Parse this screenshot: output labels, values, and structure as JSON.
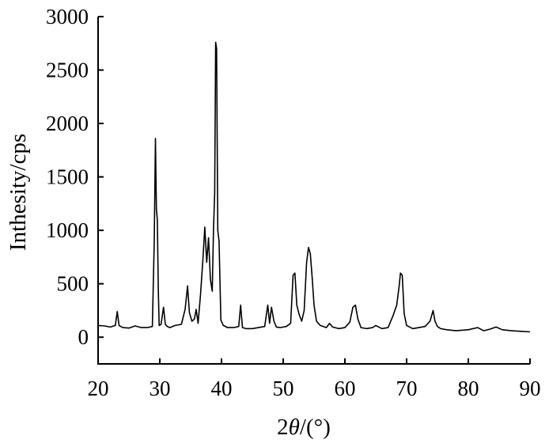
{
  "chart_data": {
    "type": "line",
    "title": "",
    "xlabel": {
      "prefix": "2",
      "symbol": "θ",
      "suffix": "/(°)"
    },
    "ylabel": "Inthesity/cps",
    "xlim": [
      20,
      90
    ],
    "ylim": [
      -250,
      3000
    ],
    "xticks": [
      "20",
      "30",
      "40",
      "50",
      "60",
      "70",
      "80",
      "90"
    ],
    "yticks": [
      "0",
      "500",
      "1000",
      "1500",
      "2000",
      "2500",
      "3000"
    ],
    "grid": false,
    "legend": "none",
    "line_color": "#000000",
    "series": [
      {
        "x": [
          20,
          21,
          22,
          22.8,
          23.1,
          23.4,
          24,
          25,
          26,
          27,
          28,
          28.8,
          29.1,
          29.3,
          29.45,
          29.6,
          29.75,
          29.9,
          30.2,
          30.6,
          30.9,
          31.2,
          31.6,
          32.5,
          33.5,
          34.1,
          34.5,
          34.8,
          35.2,
          35.6,
          35.9,
          36.2,
          36.6,
          37.0,
          37.3,
          37.6,
          37.9,
          38.2,
          38.5,
          38.7,
          38.9,
          39.05,
          39.2,
          39.4,
          39.6,
          39.9,
          40.3,
          41,
          42,
          42.8,
          43.1,
          43.4,
          44,
          45,
          46,
          47,
          47.5,
          47.8,
          48.1,
          48.5,
          48.9,
          49.5,
          50.5,
          51.2,
          51.6,
          51.9,
          52.2,
          52.6,
          53.0,
          53.4,
          53.8,
          54.1,
          54.4,
          54.7,
          55.0,
          55.4,
          56,
          57,
          57.5,
          58,
          59,
          60,
          60.8,
          61.3,
          61.7,
          62.1,
          62.6,
          63.5,
          64.5,
          65,
          66,
          67,
          67.8,
          68.4,
          68.8,
          69.0,
          69.3,
          69.6,
          70.0,
          71,
          72,
          73,
          73.8,
          74.3,
          74.6,
          75.0,
          75.5,
          76.5,
          78,
          80,
          81.5,
          82.5,
          83.5,
          84.5,
          85.5,
          87,
          88.5,
          90
        ],
        "y": [
          110,
          105,
          95,
          110,
          240,
          110,
          90,
          85,
          105,
          90,
          90,
          100,
          900,
          1860,
          1200,
          1100,
          450,
          110,
          120,
          280,
          120,
          100,
          90,
          110,
          120,
          260,
          480,
          230,
          150,
          170,
          260,
          130,
          400,
          740,
          1030,
          700,
          930,
          540,
          430,
          1010,
          1350,
          2760,
          2700,
          1000,
          900,
          160,
          110,
          90,
          90,
          100,
          300,
          90,
          80,
          80,
          90,
          100,
          300,
          130,
          280,
          150,
          95,
          90,
          100,
          130,
          580,
          600,
          300,
          210,
          150,
          250,
          700,
          840,
          780,
          550,
          300,
          150,
          110,
          90,
          130,
          95,
          80,
          90,
          140,
          280,
          300,
          170,
          90,
          80,
          90,
          110,
          80,
          90,
          200,
          300,
          480,
          600,
          580,
          220,
          110,
          80,
          90,
          100,
          150,
          250,
          150,
          100,
          80,
          70,
          60,
          70,
          90,
          60,
          75,
          95,
          70,
          60,
          55,
          50
        ]
      }
    ]
  }
}
